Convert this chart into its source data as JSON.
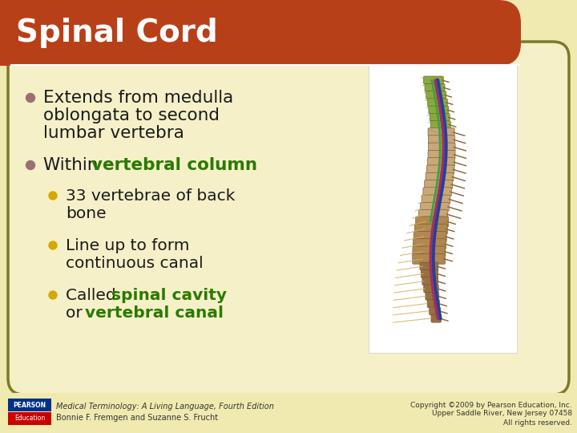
{
  "title": "Spinal Cord",
  "title_color": "#FFFFFF",
  "title_bg_color": "#B84018",
  "bg_color": "#F0EAB0",
  "content_bg": "#F5F0C8",
  "border_color": "#7A7A2A",
  "bullet_dot_color": "#9B7070",
  "sub_dot_color": "#D4A800",
  "text_color": "#1A1A1A",
  "green_color": "#2A7A00",
  "bullet1_line1": "Extends from medulla",
  "bullet1_line2": "oblongata to second",
  "bullet1_line3": "lumbar vertebra",
  "bullet2_prefix": "Within ",
  "bullet2_green": "vertebral column",
  "sub1_line1": "33 vertebrae of back",
  "sub1_line2": "bone",
  "sub2_line1": "Line up to form",
  "sub2_line2": "continuous canal",
  "sub3_prefix": "Called ",
  "sub3_green1": "spinal cavity",
  "sub3_line2_prefix": "or ",
  "sub3_green2": "vertebral canal",
  "footer_left1": "Medical Terminology: A Living Language, Fourth Edition",
  "footer_left2": "Bonnie F. Fremgen and Suzanne S. Frucht",
  "footer_right1": "Copyright ©2009 by Pearson Education, Inc.",
  "footer_right2": "Upper Saddle River, New Jersey 07458",
  "footer_right3": "All rights reserved."
}
